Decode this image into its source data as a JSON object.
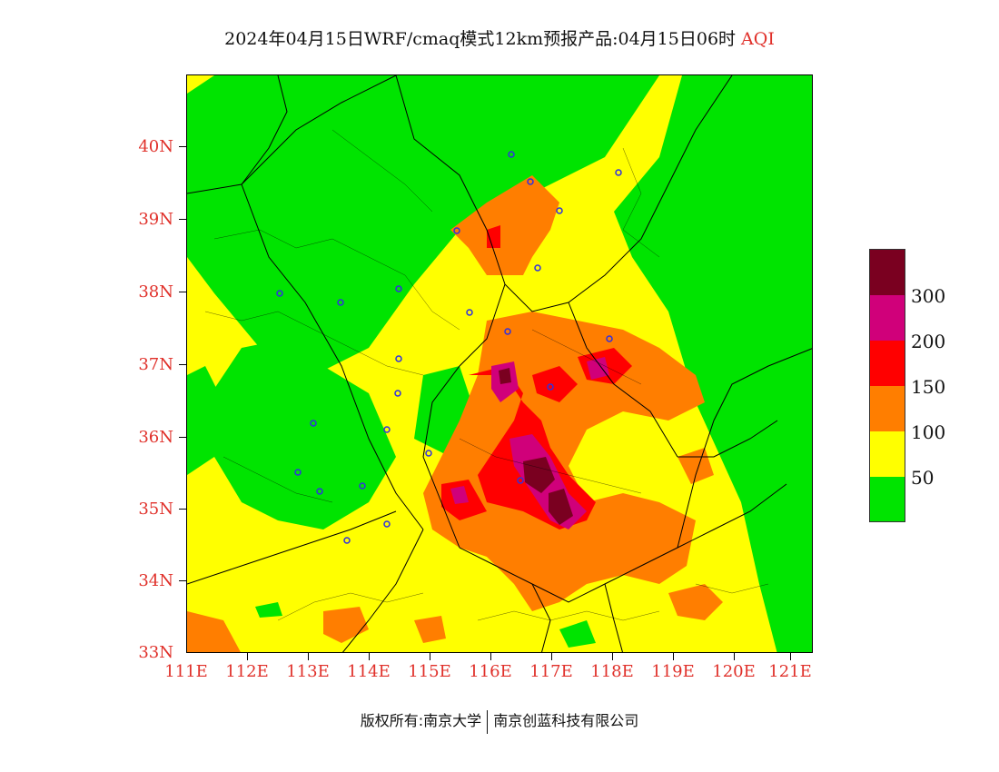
{
  "title": {
    "main": "2024年04月15日WRF/cmaq模式12km预报产品:04月15日06时",
    "suffix": "AQI"
  },
  "map": {
    "lat_labels": [
      "40N",
      "39N",
      "38N",
      "37N",
      "36N",
      "35N",
      "34N",
      "33N"
    ],
    "lon_labels": [
      "111E",
      "112E",
      "113E",
      "114E",
      "115E",
      "116E",
      "117E",
      "118E",
      "119E",
      "120E",
      "121E"
    ]
  },
  "legend": {
    "labels": [
      "300",
      "200",
      "150",
      "100",
      "50"
    ],
    "colors": [
      "#7a0020",
      "#d0007a",
      "#ff0000",
      "#ff7e00",
      "#ffff00",
      "#00e400"
    ]
  },
  "footer": {
    "copyright": "版权所有:南京大学",
    "company": "南京创蓝科技有限公司"
  },
  "colors": {
    "good": "#00e400",
    "moderate": "#ffff00",
    "usg": "#ff7e00",
    "unhealthy": "#ff0000",
    "very_unhealthy": "#d0007a",
    "hazardous": "#7a0020",
    "axis_label": "#e0302a"
  }
}
